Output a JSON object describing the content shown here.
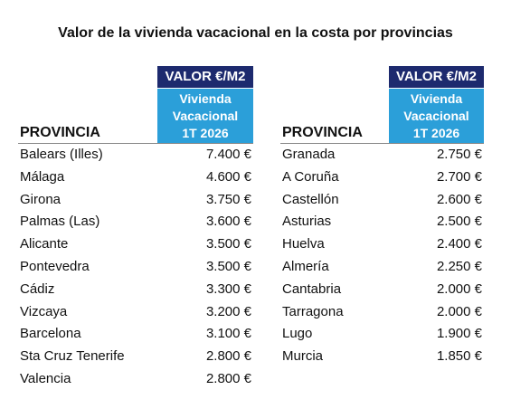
{
  "title": "Valor de la vivienda vacacional en la costa por provincias",
  "tables": [
    {
      "header": {
        "column1": "PROVINCIA",
        "unit": "VALOR €/M2",
        "subheader": [
          "Vivienda",
          "Vacacional",
          "1T 2026"
        ]
      },
      "rows": [
        [
          "Balears (Illes)",
          "7.400 €"
        ],
        [
          "Málaga",
          "4.600 €"
        ],
        [
          "Girona",
          "3.750 €"
        ],
        [
          "Palmas (Las)",
          "3.600 €"
        ],
        [
          "Alicante",
          "3.500 €"
        ],
        [
          "Pontevedra",
          "3.500 €"
        ],
        [
          "Cádiz",
          "3.300 €"
        ],
        [
          "Vizcaya",
          "3.200 €"
        ],
        [
          "Barcelona",
          "3.100 €"
        ],
        [
          "Sta Cruz Tenerife",
          "2.800 €"
        ],
        [
          "Valencia",
          "2.800 €"
        ]
      ]
    },
    {
      "header": {
        "column1": "PROVINCIA",
        "unit": "VALOR €/M2",
        "subheader": [
          "Vivienda",
          "Vacacional",
          "1T 2026"
        ]
      },
      "rows": [
        [
          "Granada",
          "2.750 €"
        ],
        [
          "A Coruña",
          "2.700 €"
        ],
        [
          "Castellón",
          "2.600 €"
        ],
        [
          "Asturias",
          "2.500 €"
        ],
        [
          "Huelva",
          "2.400 €"
        ],
        [
          "Almería",
          "2.250 €"
        ],
        [
          "Cantabria",
          "2.000 €"
        ],
        [
          "Tarragona",
          "2.000 €"
        ],
        [
          "Lugo",
          "1.900 €"
        ],
        [
          "Murcia",
          "1.850 €"
        ]
      ]
    }
  ]
}
